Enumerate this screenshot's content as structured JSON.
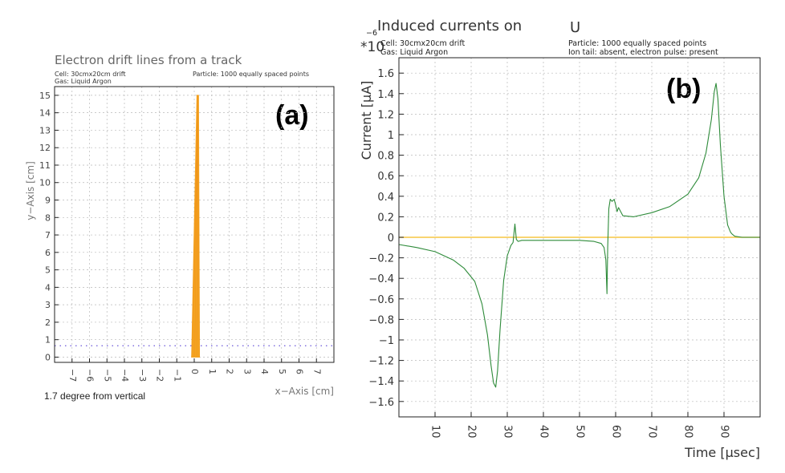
{
  "chart_data": [
    {
      "type": "line",
      "panel_label": "(a)",
      "title": "Electron drift lines from a track",
      "info_left": [
        "Cell: 30cmx20cm drift",
        "Gas: Liquid Argon"
      ],
      "info_right": [
        "Particle: 1000 equally spaced points"
      ],
      "xlabel": "x−Axis [cm]",
      "ylabel": "y−Axis [cm]",
      "xlim": [
        -8,
        8
      ],
      "ylim": [
        -0.3,
        15.5
      ],
      "xticks": [
        -7,
        -6,
        -5,
        -4,
        -3,
        -2,
        -1,
        0,
        1,
        2,
        3,
        4,
        5,
        6,
        7
      ],
      "xtick_labels": [
        "−7",
        "−6",
        "−5",
        "−4",
        "−3",
        "−2",
        "−1",
        "0",
        "1",
        "2",
        "3",
        "4",
        "5",
        "6",
        "7"
      ],
      "yticks": [
        0,
        1,
        2,
        3,
        4,
        5,
        6,
        7,
        8,
        9,
        10,
        11,
        12,
        13,
        14,
        15
      ],
      "ytick_labels": [
        "0",
        "1",
        "2",
        "3",
        "4",
        "5",
        "6",
        "7",
        "8",
        "9",
        "10",
        "11",
        "12",
        "13",
        "14",
        "15"
      ],
      "grid": true,
      "series": [
        {
          "color": "#f5a623",
          "drift_band": {
            "x_top": 0.2,
            "x_bottom_left": -0.15,
            "x_bottom_right": 0.3,
            "y_top": 15,
            "y_bottom": 0
          }
        },
        {
          "color": "#7766dd",
          "dotted_level_y": 0.65
        }
      ],
      "annotation": "1.7 degree from vertical"
    },
    {
      "type": "line",
      "panel_label": "(b)",
      "title": "Induced currents on",
      "title_symbol": "U",
      "info_left": [
        "Cell: 30cmx20cm drift",
        "Gas: Liquid Argon"
      ],
      "info_right": [
        "Particle: 1000 equally spaced points",
        "Ion tail: absent, electron pulse: present"
      ],
      "scale_prefix": "*10",
      "scale_exponent": "−6",
      "xlabel": "Time [μsec]",
      "ylabel": "Current [μA]",
      "xlim": [
        0,
        100
      ],
      "ylim": [
        -1.75,
        1.75
      ],
      "xticks": [
        10,
        20,
        30,
        40,
        50,
        60,
        70,
        80,
        90
      ],
      "xtick_labels": [
        "10",
        "20",
        "30",
        "40",
        "50",
        "60",
        "70",
        "80",
        "90"
      ],
      "yticks": [
        -1.6,
        -1.4,
        -1.2,
        -1,
        -0.8,
        -0.6,
        -0.4,
        -0.2,
        0,
        0.2,
        0.4,
        0.6,
        0.8,
        1,
        1.2,
        1.4,
        1.6
      ],
      "ytick_labels": [
        "−1.6",
        "−1.4",
        "−1.2",
        "−1",
        "−0.8",
        "−0.6",
        "−0.4",
        "−0.2",
        "0",
        "0.2",
        "0.4",
        "0.6",
        "0.8",
        "1",
        "1.2",
        "1.4",
        "1.6"
      ],
      "grid": true,
      "series": [
        {
          "color": "#f5c542",
          "x": [
            0,
            100
          ],
          "y": [
            0,
            0
          ]
        },
        {
          "color": "#2e8b3a",
          "x": [
            0,
            5,
            10,
            15,
            18,
            21,
            23,
            24.5,
            25.5,
            26.2,
            26.8,
            27.3,
            28,
            29,
            30,
            31,
            31.6,
            32.1,
            32.5,
            33,
            34,
            40,
            50,
            54,
            56,
            56.8,
            57.3,
            57.6,
            57.8,
            58.1,
            58.5,
            59,
            59.6,
            60.1,
            60.4,
            60.8,
            62,
            65,
            70,
            75,
            80,
            83,
            85,
            86.5,
            87.3,
            87.8,
            88.3,
            89,
            90,
            91,
            91.8,
            92.3,
            93,
            95,
            100
          ],
          "y": [
            -0.07,
            -0.1,
            -0.14,
            -0.22,
            -0.3,
            -0.43,
            -0.65,
            -0.95,
            -1.25,
            -1.42,
            -1.46,
            -1.3,
            -0.9,
            -0.42,
            -0.18,
            -0.08,
            -0.05,
            0.13,
            -0.02,
            -0.04,
            -0.03,
            -0.03,
            -0.03,
            -0.04,
            -0.06,
            -0.1,
            -0.22,
            -0.55,
            -0.1,
            0.28,
            0.37,
            0.35,
            0.37,
            0.3,
            0.25,
            0.29,
            0.21,
            0.2,
            0.24,
            0.3,
            0.42,
            0.58,
            0.82,
            1.15,
            1.42,
            1.5,
            1.35,
            0.9,
            0.4,
            0.12,
            0.05,
            0.03,
            0.01,
            0,
            0
          ]
        }
      ]
    }
  ]
}
